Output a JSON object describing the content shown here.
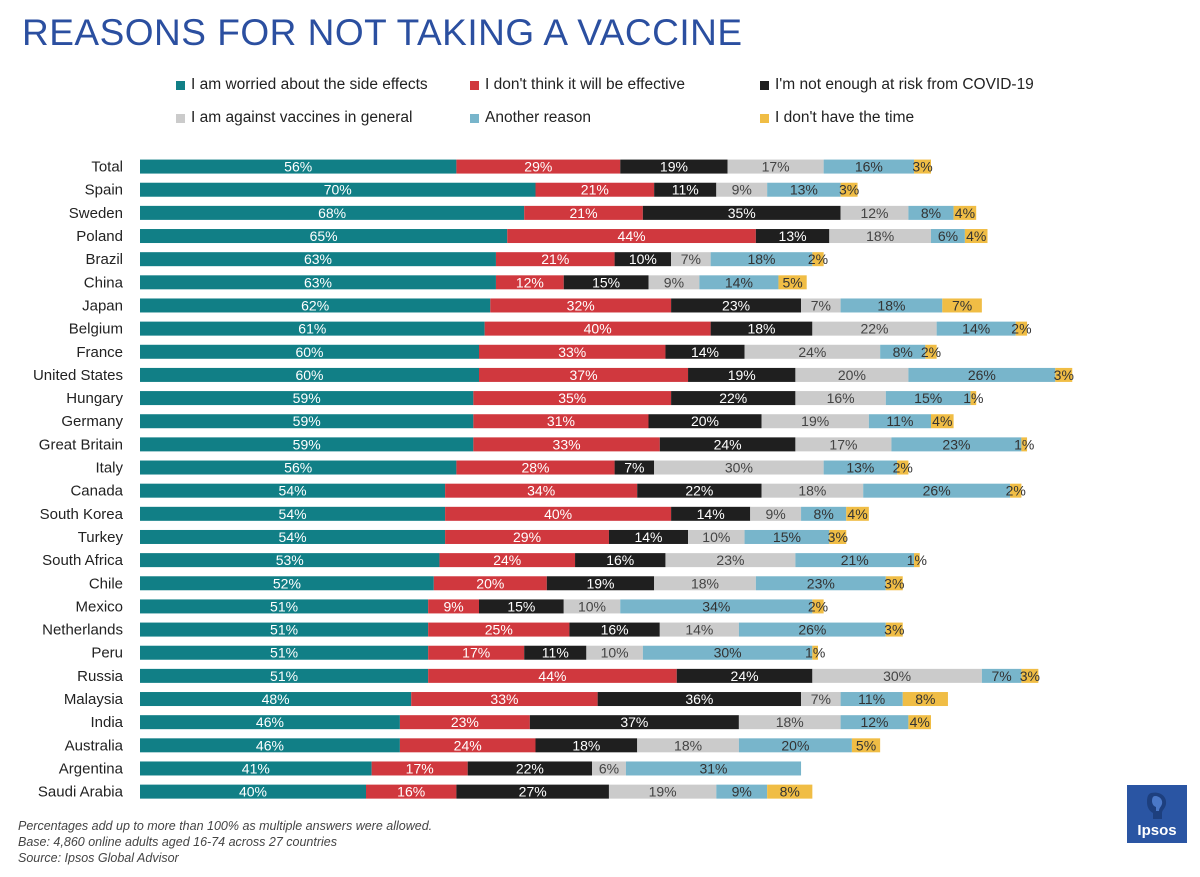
{
  "title": "REASONS FOR NOT TAKING A VACCINE",
  "footnotes": [
    "Percentages add up to more than 100% as multiple answers were allowed.",
    "Base: 4,860 online adults aged 16-74 across 27 countries",
    "Source: Ipsos Global Advisor"
  ],
  "logo_text": "Ipsos",
  "colors": {
    "side_effects": "#117f86",
    "not_effective": "#d0383e",
    "not_at_risk": "#1f1f1f",
    "against_vaccines": "#cbcbcb",
    "another_reason": "#78b5cb",
    "no_time": "#f0bd45"
  },
  "chart_data": {
    "type": "bar",
    "orientation": "horizontal",
    "stacked": true,
    "title": "REASONS FOR NOT TAKING A VACCINE",
    "legend_position": "top",
    "grid": false,
    "categories": [
      "Total",
      "Spain",
      "Sweden",
      "Poland",
      "Brazil",
      "China",
      "Japan",
      "Belgium",
      "France",
      "United States",
      "Hungary",
      "Germany",
      "Great Britain",
      "Italy",
      "Canada",
      "South Korea",
      "Turkey",
      "South Africa",
      "Chile",
      "Mexico",
      "Netherlands",
      "Peru",
      "Russia",
      "Malaysia",
      "India",
      "Australia",
      "Argentina",
      "Saudi Arabia"
    ],
    "series": [
      {
        "name": "I am worried about the side effects",
        "color": "#117f86",
        "label_color": "#ffffff",
        "values": [
          56,
          70,
          68,
          65,
          63,
          63,
          62,
          61,
          60,
          60,
          59,
          59,
          59,
          56,
          54,
          54,
          54,
          53,
          52,
          51,
          51,
          51,
          51,
          48,
          46,
          46,
          41,
          40
        ]
      },
      {
        "name": "I don't think it will be effective",
        "color": "#d0383e",
        "label_color": "#ffffff",
        "values": [
          29,
          21,
          21,
          44,
          21,
          12,
          32,
          40,
          33,
          37,
          35,
          31,
          33,
          28,
          34,
          40,
          29,
          24,
          20,
          9,
          25,
          17,
          44,
          33,
          23,
          24,
          17,
          16
        ]
      },
      {
        "name": "I'm not enough at risk from COVID-19",
        "color": "#1f1f1f",
        "label_color": "#ffffff",
        "values": [
          19,
          11,
          35,
          13,
          10,
          15,
          23,
          18,
          14,
          19,
          22,
          20,
          24,
          7,
          22,
          14,
          14,
          16,
          19,
          15,
          16,
          11,
          24,
          36,
          37,
          18,
          22,
          27
        ]
      },
      {
        "name": "I am against vaccines in general",
        "color": "#cbcbcb",
        "label_color": "#444444",
        "values": [
          17,
          9,
          12,
          18,
          7,
          9,
          7,
          22,
          24,
          20,
          16,
          19,
          17,
          30,
          18,
          9,
          10,
          23,
          18,
          10,
          14,
          10,
          30,
          7,
          18,
          18,
          6,
          19
        ]
      },
      {
        "name": "Another reason",
        "color": "#78b5cb",
        "label_color": "#333333",
        "values": [
          16,
          13,
          8,
          6,
          18,
          14,
          18,
          14,
          8,
          26,
          15,
          11,
          23,
          13,
          26,
          8,
          15,
          21,
          23,
          34,
          26,
          30,
          7,
          11,
          12,
          20,
          31,
          9
        ]
      },
      {
        "name": "I don't have the time",
        "color": "#f0bd45",
        "label_color": "#333333",
        "values": [
          3,
          3,
          4,
          4,
          2,
          5,
          7,
          2,
          2,
          3,
          1,
          4,
          1,
          2,
          2,
          4,
          3,
          1,
          3,
          2,
          3,
          1,
          3,
          8,
          4,
          5,
          0,
          8
        ]
      }
    ]
  }
}
